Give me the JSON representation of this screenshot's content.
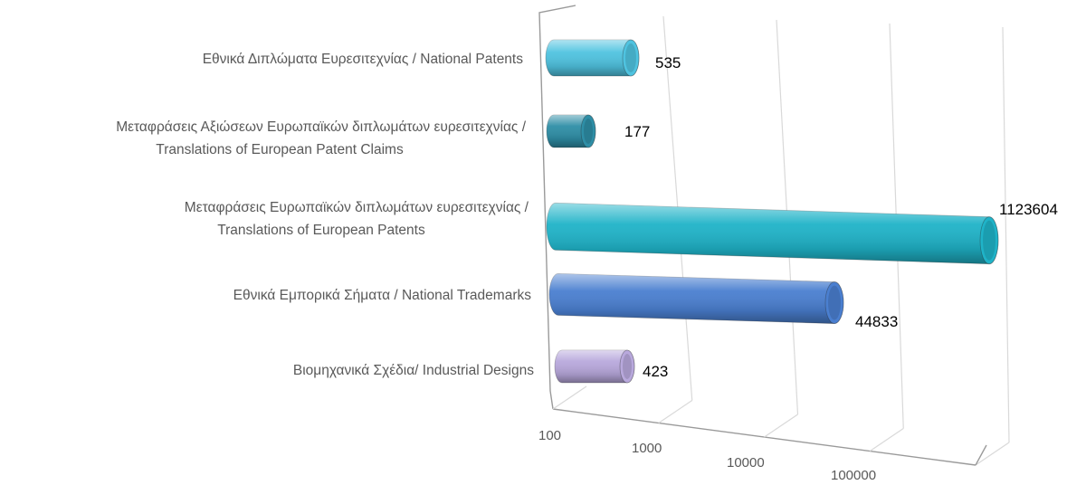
{
  "chart_data": {
    "type": "bar",
    "orientation": "horizontal",
    "style": "3d-cylinder",
    "x_scale": "log",
    "xlim": [
      100,
      1000000
    ],
    "x_ticks": [
      {
        "value": 100,
        "label": "100"
      },
      {
        "value": 1000,
        "label": "1000"
      },
      {
        "value": 10000,
        "label": "10000"
      },
      {
        "value": 100000,
        "label": "100000"
      }
    ],
    "grid": true,
    "legend": "none",
    "categories": [
      {
        "lines": [
          "Εθνικά Διπλώματα Ευρεσιτεχνίας / National Patents"
        ],
        "value": 535,
        "value_label": "535",
        "color": "#4fc3e0"
      },
      {
        "lines": [
          "Μεταφράσεις Αξιώσεων Ευρωπαϊκών διπλωμάτων ευρεσιτεχνίας /",
          "Translations of European Patent Claims"
        ],
        "value": 177,
        "value_label": "177",
        "color": "#2e8ea6"
      },
      {
        "lines": [
          "Μεταφράσεις Ευρωπαϊκών διπλωμάτων ευρεσιτεχνίας /",
          "Translations of European Patents"
        ],
        "value": 1123604,
        "value_label": "1123604",
        "color": "#1fb3c8"
      },
      {
        "lines": [
          "Εθνικά Εμπορικά Σήματα / National Trademarks"
        ],
        "value": 44833,
        "value_label": "44833",
        "color": "#4a7fd0"
      },
      {
        "lines": [
          "Βιομηχανικά Σχέδια/ Industrial Designs"
        ],
        "value": 423,
        "value_label": "423",
        "color": "#b8a8dc"
      }
    ]
  }
}
